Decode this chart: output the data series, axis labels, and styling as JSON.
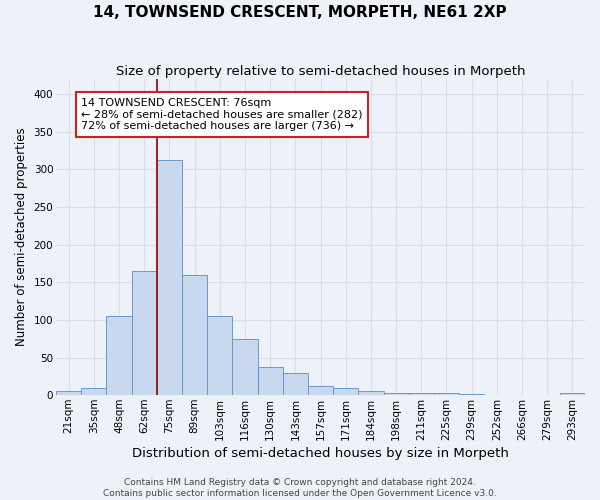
{
  "title": "14, TOWNSEND CRESCENT, MORPETH, NE61 2XP",
  "subtitle": "Size of property relative to semi-detached houses in Morpeth",
  "xlabel": "Distribution of semi-detached houses by size in Morpeth",
  "ylabel": "Number of semi-detached properties",
  "footer_line1": "Contains HM Land Registry data © Crown copyright and database right 2024.",
  "footer_line2": "Contains public sector information licensed under the Open Government Licence v3.0.",
  "categories": [
    "21sqm",
    "35sqm",
    "48sqm",
    "62sqm",
    "75sqm",
    "89sqm",
    "103sqm",
    "116sqm",
    "130sqm",
    "143sqm",
    "157sqm",
    "171sqm",
    "184sqm",
    "198sqm",
    "211sqm",
    "225sqm",
    "239sqm",
    "252sqm",
    "266sqm",
    "279sqm",
    "293sqm"
  ],
  "values": [
    5,
    9,
    105,
    165,
    312,
    160,
    105,
    75,
    37,
    29,
    12,
    9,
    5,
    3,
    3,
    3,
    2,
    0,
    0,
    0,
    3
  ],
  "bar_color": "#c8d8ee",
  "bar_edge_color": "#6699cc",
  "vline_x_index": 4,
  "vline_color": "#991111",
  "annotation_line1": "14 TOWNSEND CRESCENT: 76sqm",
  "annotation_line2": "← 28% of semi-detached houses are smaller (282)",
  "annotation_line3": "72% of semi-detached houses are larger (736) →",
  "annotation_box_color": "white",
  "annotation_box_edge_color": "#cc2222",
  "ylim": [
    0,
    420
  ],
  "yticks": [
    0,
    50,
    100,
    150,
    200,
    250,
    300,
    350,
    400
  ],
  "bg_color": "#eef2f8",
  "grid_color": "#d8dde8",
  "title_fontsize": 11,
  "subtitle_fontsize": 9.5,
  "xlabel_fontsize": 9.5,
  "ylabel_fontsize": 8.5,
  "tick_fontsize": 7.5,
  "footer_fontsize": 6.5
}
